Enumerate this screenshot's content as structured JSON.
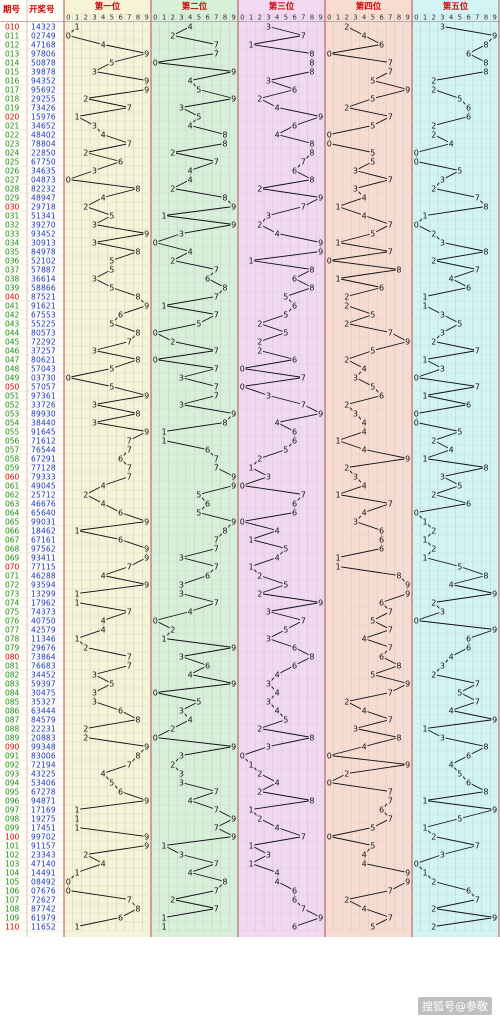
{
  "chart_data": {
    "type": "line",
    "headers": {
      "issue": "期号",
      "draw": "开奖号"
    },
    "positions": [
      "第一位",
      "第二位",
      "第三位",
      "第四位",
      "第五位"
    ],
    "digit_ticks": [
      "0",
      "1",
      "2",
      "3",
      "4",
      "5",
      "6",
      "7",
      "8",
      "9"
    ],
    "panel_colors": [
      "#f6f3d6",
      "#d8efd8",
      "#f2d8f2",
      "#f9dcd0",
      "#d3f4f4"
    ],
    "draws": [
      {
        "issue": "010",
        "number": "14323"
      },
      {
        "issue": "011",
        "number": "02749"
      },
      {
        "issue": "012",
        "number": "47168"
      },
      {
        "issue": "013",
        "number": "97806"
      },
      {
        "issue": "014",
        "number": "50878"
      },
      {
        "issue": "015",
        "number": "39878"
      },
      {
        "issue": "016",
        "number": "94352"
      },
      {
        "issue": "017",
        "number": "95692"
      },
      {
        "issue": "018",
        "number": "29255"
      },
      {
        "issue": "019",
        "number": "73426"
      },
      {
        "issue": "020",
        "number": "15976"
      },
      {
        "issue": "021",
        "number": "34652"
      },
      {
        "issue": "022",
        "number": "48402"
      },
      {
        "issue": "023",
        "number": "78804"
      },
      {
        "issue": "024",
        "number": "22850"
      },
      {
        "issue": "025",
        "number": "67750"
      },
      {
        "issue": "026",
        "number": "34635"
      },
      {
        "issue": "027",
        "number": "04873"
      },
      {
        "issue": "028",
        "number": "82232"
      },
      {
        "issue": "029",
        "number": "48947"
      },
      {
        "issue": "030",
        "number": "29718"
      },
      {
        "issue": "031",
        "number": "51341"
      },
      {
        "issue": "032",
        "number": "39270"
      },
      {
        "issue": "033",
        "number": "93452"
      },
      {
        "issue": "034",
        "number": "30913"
      },
      {
        "issue": "035",
        "number": "84978"
      },
      {
        "issue": "036",
        "number": "52102"
      },
      {
        "issue": "037",
        "number": "57887"
      },
      {
        "issue": "038",
        "number": "36614"
      },
      {
        "issue": "039",
        "number": "58866"
      },
      {
        "issue": "040",
        "number": "87521"
      },
      {
        "issue": "041",
        "number": "91621"
      },
      {
        "issue": "042",
        "number": "67553"
      },
      {
        "issue": "043",
        "number": "55225"
      },
      {
        "issue": "044",
        "number": "80573"
      },
      {
        "issue": "045",
        "number": "72292"
      },
      {
        "issue": "046",
        "number": "37257"
      },
      {
        "issue": "047",
        "number": "80621"
      },
      {
        "issue": "048",
        "number": "57043"
      },
      {
        "issue": "049",
        "number": "03730"
      },
      {
        "issue": "050",
        "number": "57057"
      },
      {
        "issue": "051",
        "number": "97361"
      },
      {
        "issue": "052",
        "number": "33726"
      },
      {
        "issue": "053",
        "number": "89930"
      },
      {
        "issue": "054",
        "number": "38440"
      },
      {
        "issue": "055",
        "number": "91645"
      },
      {
        "issue": "056",
        "number": "71612"
      },
      {
        "issue": "057",
        "number": "76544"
      },
      {
        "issue": "058",
        "number": "67291"
      },
      {
        "issue": "059",
        "number": "77128"
      },
      {
        "issue": "060",
        "number": "79333"
      },
      {
        "issue": "061",
        "number": "49045"
      },
      {
        "issue": "062",
        "number": "25712"
      },
      {
        "issue": "063",
        "number": "46676"
      },
      {
        "issue": "064",
        "number": "65640"
      },
      {
        "issue": "065",
        "number": "99031"
      },
      {
        "issue": "066",
        "number": "18462"
      },
      {
        "issue": "067",
        "number": "67161"
      },
      {
        "issue": "068",
        "number": "97562"
      },
      {
        "issue": "069",
        "number": "93411"
      },
      {
        "issue": "070",
        "number": "77115"
      },
      {
        "issue": "071",
        "number": "46288"
      },
      {
        "issue": "072",
        "number": "93594"
      },
      {
        "issue": "073",
        "number": "13299"
      },
      {
        "issue": "074",
        "number": "17962"
      },
      {
        "issue": "075",
        "number": "74373"
      },
      {
        "issue": "076",
        "number": "40750"
      },
      {
        "issue": "077",
        "number": "42579"
      },
      {
        "issue": "078",
        "number": "11346"
      },
      {
        "issue": "079",
        "number": "29676"
      },
      {
        "issue": "080",
        "number": "73864"
      },
      {
        "issue": "081",
        "number": "76683"
      },
      {
        "issue": "082",
        "number": "34452"
      },
      {
        "issue": "083",
        "number": "59397"
      },
      {
        "issue": "084",
        "number": "30475"
      },
      {
        "issue": "085",
        "number": "35327"
      },
      {
        "issue": "086",
        "number": "63444"
      },
      {
        "issue": "087",
        "number": "84579"
      },
      {
        "issue": "088",
        "number": "22231"
      },
      {
        "issue": "089",
        "number": "20883"
      },
      {
        "issue": "090",
        "number": "99348"
      },
      {
        "issue": "091",
        "number": "83006"
      },
      {
        "issue": "092",
        "number": "72194"
      },
      {
        "issue": "093",
        "number": "43225"
      },
      {
        "issue": "094",
        "number": "53406"
      },
      {
        "issue": "095",
        "number": "67278"
      },
      {
        "issue": "096",
        "number": "94871"
      },
      {
        "issue": "097",
        "number": "17169"
      },
      {
        "issue": "098",
        "number": "19275"
      },
      {
        "issue": "099",
        "number": "17451"
      },
      {
        "issue": "100",
        "number": "99702"
      },
      {
        "issue": "101",
        "number": "91157"
      },
      {
        "issue": "102",
        "number": "23343"
      },
      {
        "issue": "103",
        "number": "47140"
      },
      {
        "issue": "104",
        "number": "14491"
      },
      {
        "issue": "105",
        "number": "08492"
      },
      {
        "issue": "106",
        "number": "07676"
      },
      {
        "issue": "107",
        "number": "72627"
      },
      {
        "issue": "108",
        "number": "87742"
      },
      {
        "issue": "109",
        "number": "61979"
      },
      {
        "issue": "110",
        "number": "11652"
      }
    ],
    "grid": true,
    "watermark": "搜狐号@参敬"
  }
}
